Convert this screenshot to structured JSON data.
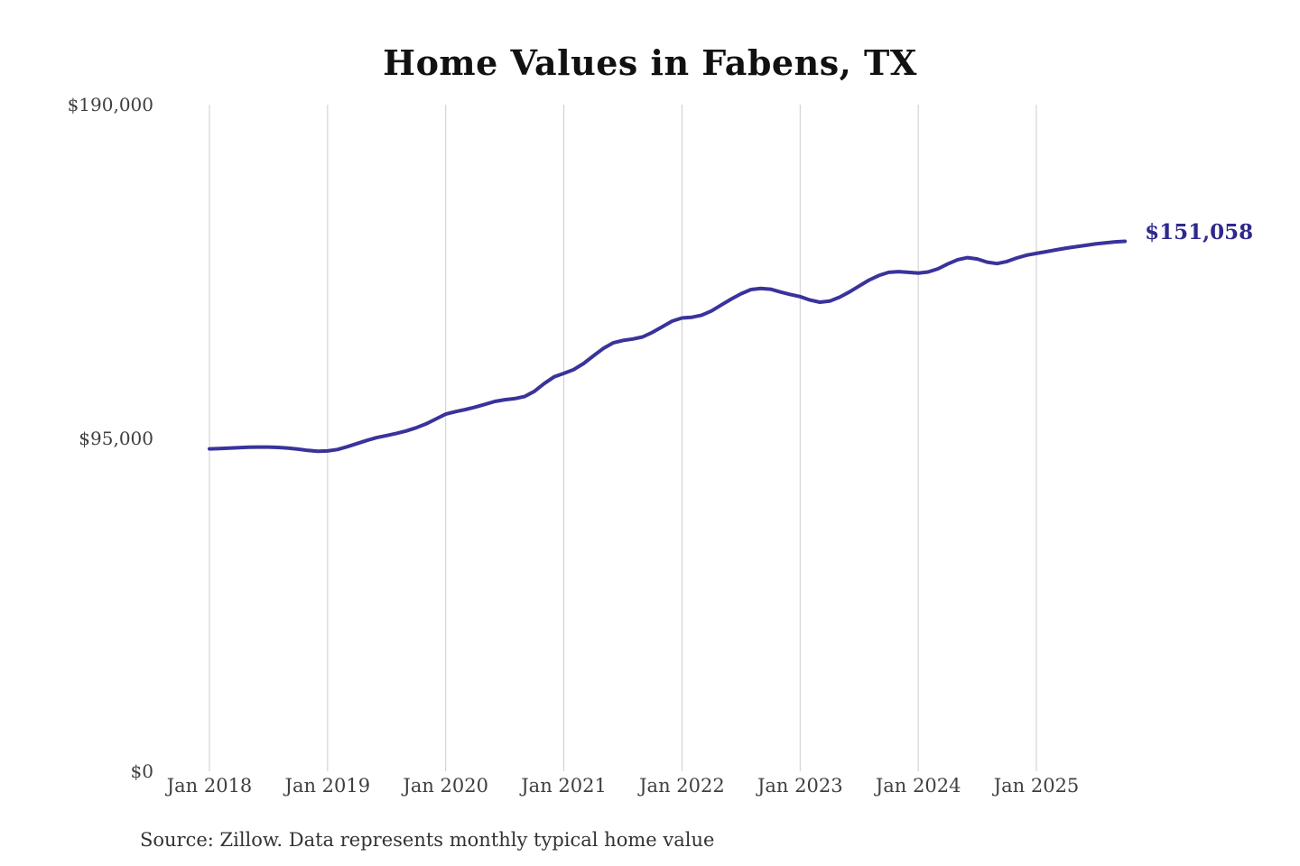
{
  "title": "Home Values in Fabens, TX",
  "end_label": "$151,058",
  "source": "Source: Zillow. Data represents monthly typical home value",
  "colors": {
    "line": "#39339b",
    "end_label": "#2e2a8c",
    "grid": "#cccccc",
    "tick_text": "#3f3f3f",
    "title_text": "#111111",
    "source_text": "#333333"
  },
  "y_axis": {
    "ticks": [
      {
        "label": "$190,000",
        "value": 190000
      },
      {
        "label": "$95,000",
        "value": 95000
      },
      {
        "label": "$0",
        "value": 0
      }
    ]
  },
  "x_axis": {
    "ticks": [
      "Jan 2018",
      "Jan 2019",
      "Jan 2020",
      "Jan 2021",
      "Jan 2022",
      "Jan 2023",
      "Jan 2024",
      "Jan 2025"
    ]
  },
  "chart_data": {
    "type": "line",
    "title": "Home Values in Fabens, TX",
    "series_name": "Typical home value (USD)",
    "x_start": "2018-01",
    "x_end": "2025-10",
    "x_interval": "monthly",
    "ylim": [
      0,
      190000
    ],
    "grid": "vertical-yearly",
    "final_value": 151058,
    "final_value_label": "$151,058",
    "values": [
      91900,
      92000,
      92100,
      92250,
      92350,
      92400,
      92400,
      92300,
      92100,
      91800,
      91450,
      91200,
      91300,
      91700,
      92500,
      93400,
      94300,
      95100,
      95700,
      96300,
      97000,
      97900,
      99000,
      100400,
      101800,
      102500,
      103100,
      103800,
      104600,
      105400,
      105900,
      106200,
      106800,
      108300,
      110500,
      112400,
      113400,
      114500,
      116200,
      118400,
      120500,
      122100,
      122800,
      123200,
      123800,
      125100,
      126700,
      128300,
      129200,
      129400,
      130000,
      131200,
      132900,
      134600,
      136100,
      137300,
      137600,
      137400,
      136600,
      135900,
      135300,
      134300,
      133700,
      134000,
      135100,
      136600,
      138300,
      140000,
      141300,
      142200,
      142400,
      142200,
      142000,
      142300,
      143200,
      144600,
      145800,
      146400,
      146000,
      145100,
      144700,
      145300,
      146300,
      147100,
      147600,
      148100,
      148600,
      149100,
      149500,
      149900,
      150300,
      150600,
      150900,
      151058
    ]
  }
}
